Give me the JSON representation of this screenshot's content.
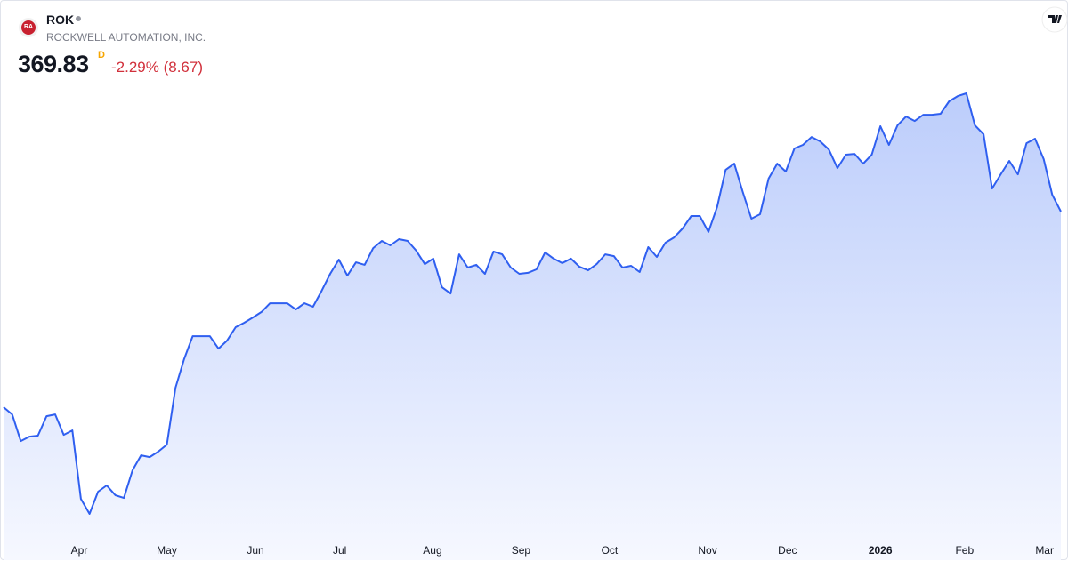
{
  "header": {
    "logo": "RA",
    "symbol": "ROK",
    "company": "ROCKWELL AUTOMATION, INC.",
    "price": "369.83",
    "interval": "D",
    "change": "-2.29% (8.67)"
  },
  "chart_data": {
    "type": "area",
    "color": "#2f5ff0",
    "values": [
      269.3,
      265.6,
      251.9,
      254.2,
      254.7,
      264.7,
      265.6,
      255.1,
      257.4,
      222.2,
      214.5,
      225.9,
      229.1,
      224.1,
      222.7,
      236.9,
      244.6,
      243.7,
      246.5,
      250.1,
      279.3,
      293.9,
      305.8,
      305.8,
      305.8,
      299.4,
      303.5,
      310.4,
      312.7,
      315.4,
      318.2,
      322.7,
      322.7,
      322.7,
      319.5,
      322.7,
      320.9,
      329.1,
      337.8,
      345.1,
      336.9,
      343.7,
      342.4,
      351.0,
      354.7,
      352.4,
      355.6,
      354.7,
      349.7,
      342.8,
      345.6,
      330.9,
      327.7,
      347.8,
      341.0,
      342.4,
      337.8,
      349.2,
      347.8,
      341.0,
      337.8,
      338.3,
      340.1,
      348.8,
      345.6,
      343.3,
      345.6,
      341.4,
      339.6,
      342.8,
      347.8,
      346.9,
      341.0,
      341.9,
      338.7,
      351.5,
      346.5,
      353.8,
      356.5,
      361.1,
      367.5,
      367.5,
      359.3,
      372.0,
      391.2,
      394.4,
      379.8,
      366.1,
      368.4,
      386.7,
      394.4,
      390.3,
      402.2,
      404.0,
      408.1,
      405.8,
      401.7,
      392.1,
      399.0,
      399.4,
      394.4,
      399.0,
      413.6,
      404.0,
      414.1,
      418.6,
      416.3,
      419.5,
      419.5,
      420.0,
      426.4,
      429.1,
      430.5,
      414.1,
      409.5,
      381.6,
      388.9,
      395.8,
      388.9,
      404.9,
      407.2,
      396.7,
      378.4,
      369.83
    ],
    "xlim": [
      0,
      123
    ],
    "ylim": [
      204,
      478
    ],
    "xticks": [
      {
        "value": 8.8,
        "label": "Apr"
      },
      {
        "value": 19.0,
        "label": "May"
      },
      {
        "value": 29.3,
        "label": "Jun"
      },
      {
        "value": 39.1,
        "label": "Jul"
      },
      {
        "value": 49.9,
        "label": "Aug"
      },
      {
        "value": 60.2,
        "label": "Sep"
      },
      {
        "value": 70.5,
        "label": "Oct"
      },
      {
        "value": 81.9,
        "label": "Nov"
      },
      {
        "value": 91.2,
        "label": "Dec"
      },
      {
        "value": 102.0,
        "label": "2026",
        "bold": true
      },
      {
        "value": 111.8,
        "label": "Feb"
      },
      {
        "value": 121.1,
        "label": "Mar"
      }
    ]
  }
}
